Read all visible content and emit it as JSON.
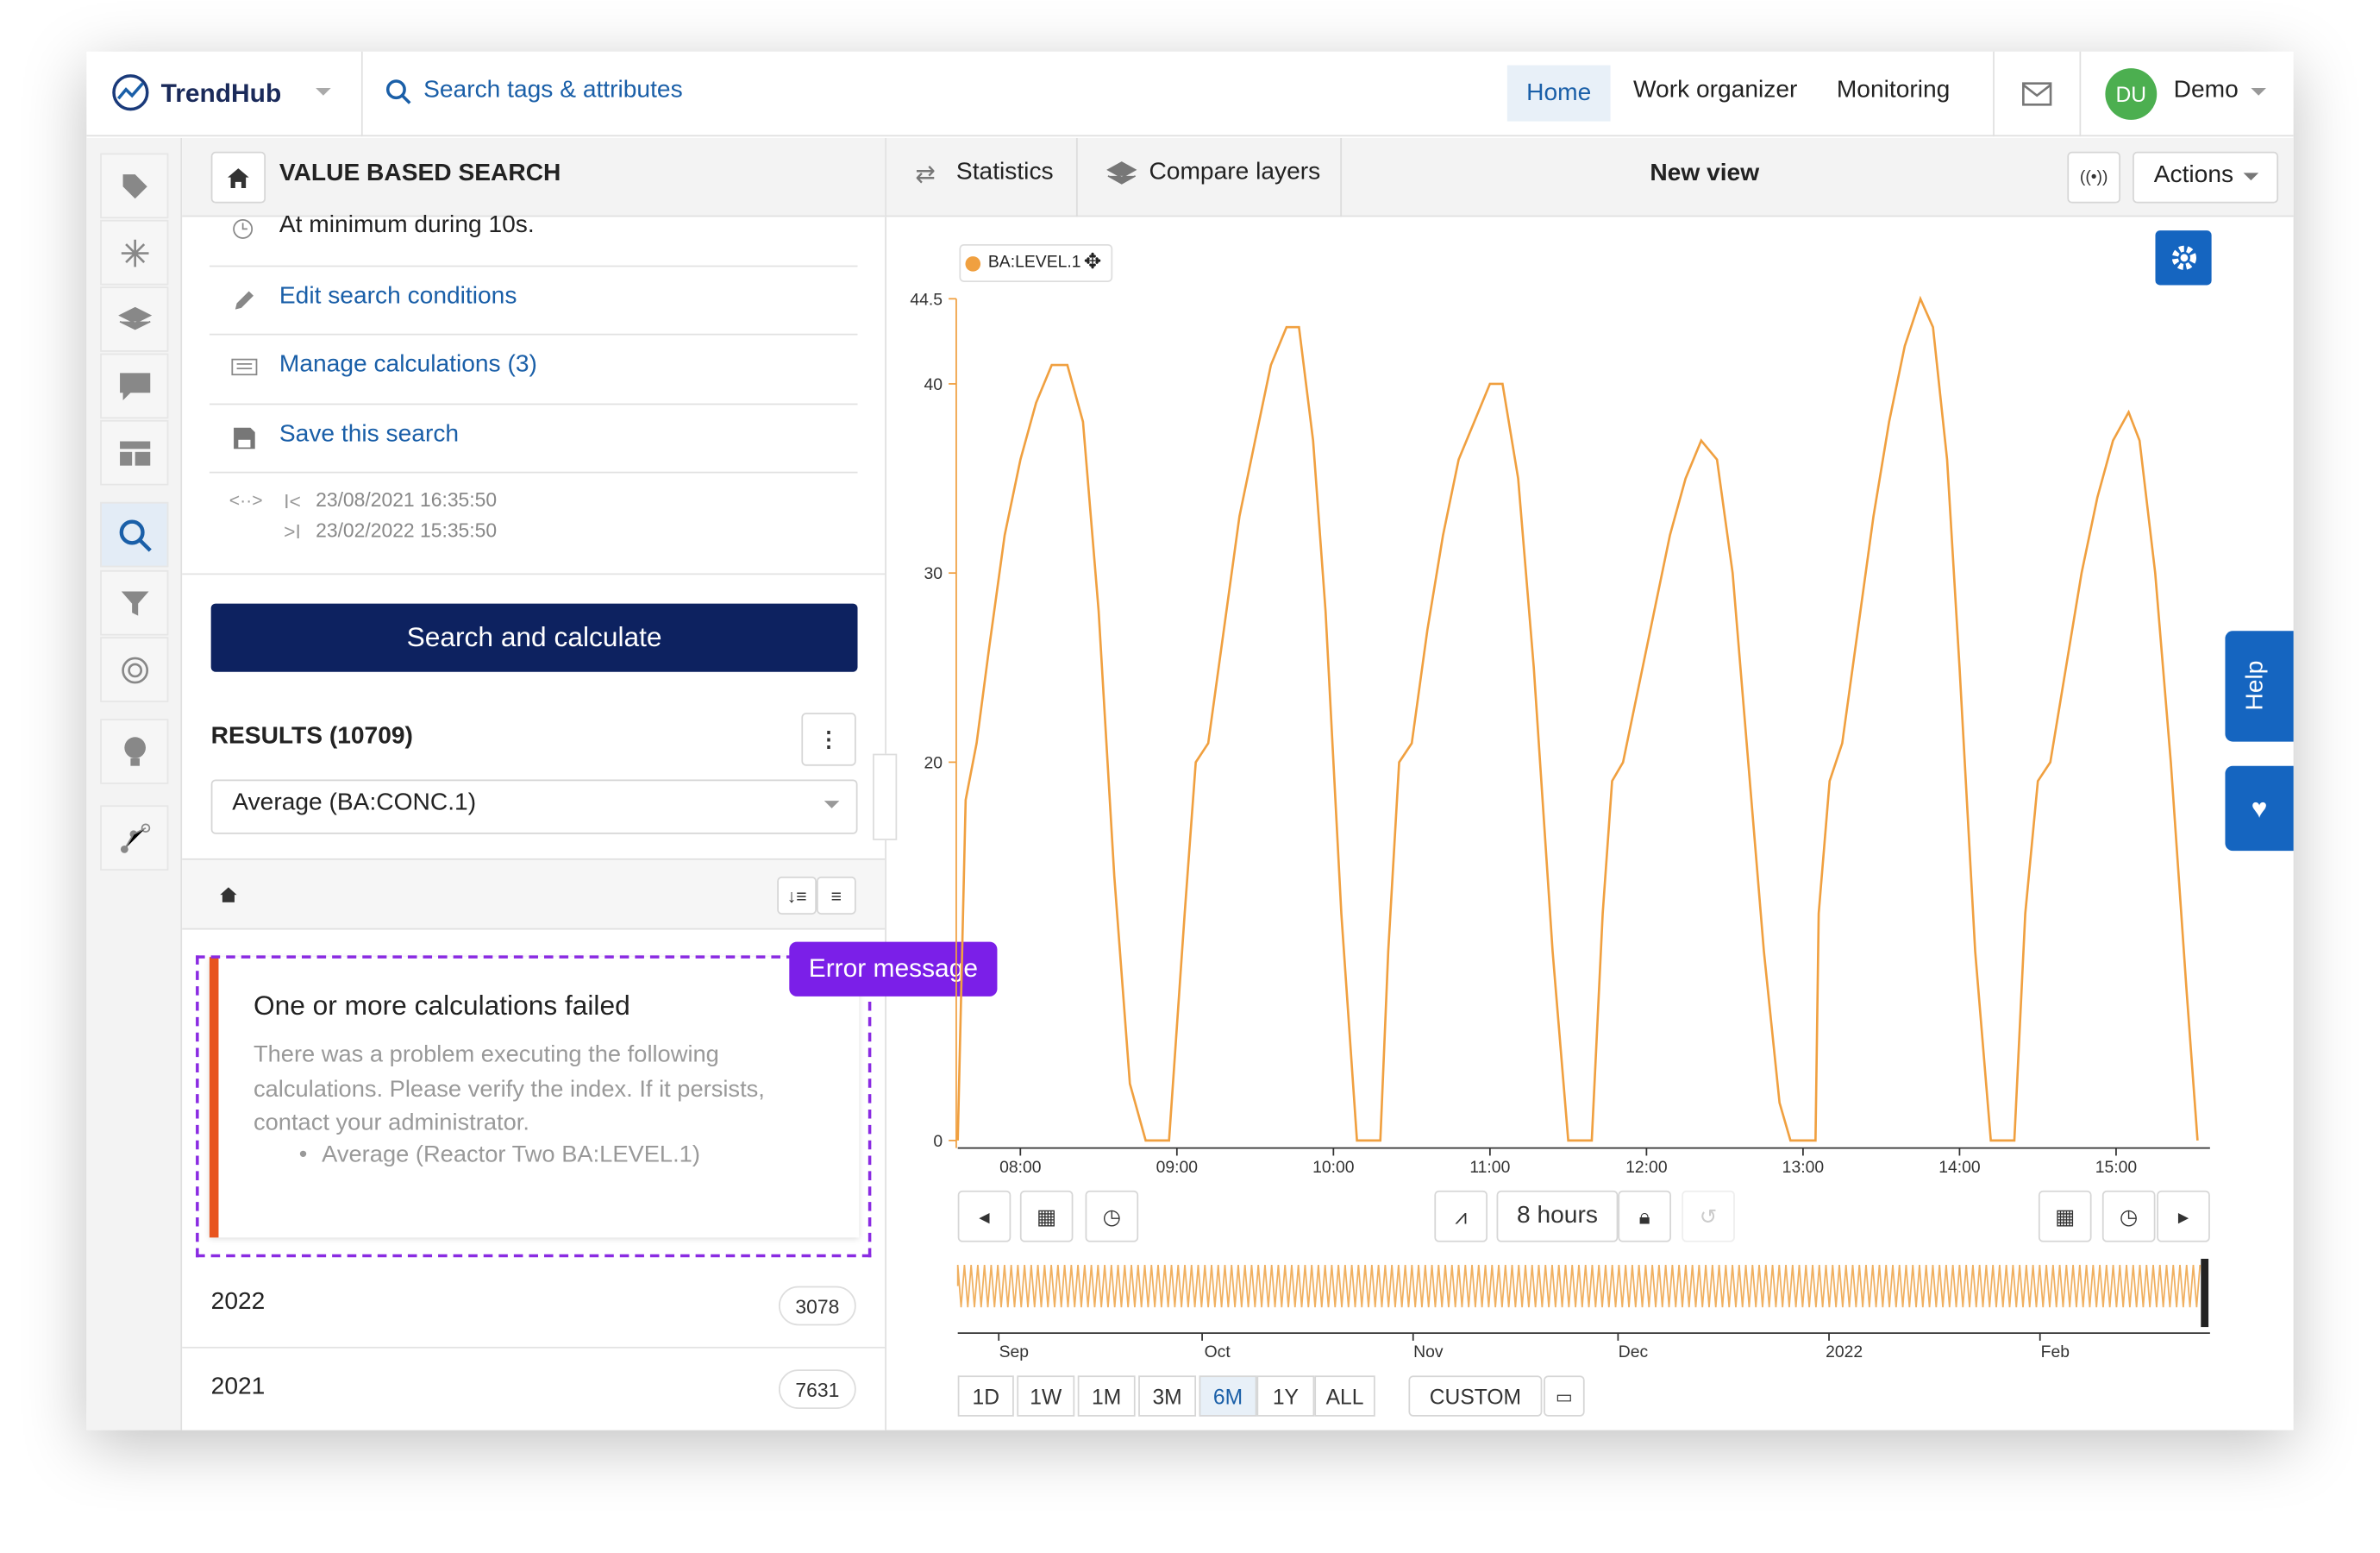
{
  "header": {
    "logo": "TrendHub",
    "search": "Search tags & attributes",
    "nav": [
      "Home",
      "Work organizer",
      "Monitoring"
    ],
    "avatar": "DU",
    "user": "Demo"
  },
  "left_panel": {
    "title": "VALUE BASED SEARCH",
    "condition": "At minimum during 10s.",
    "links": [
      "Edit search conditions",
      "Manage calculations (3)",
      "Save this search"
    ],
    "range_start": "23/08/2021 16:35:50",
    "range_end": "23/02/2022 15:35:50",
    "button": "Search and calculate",
    "results_title": "RESULTS (10709)",
    "select": "Average (BA:CONC.1)",
    "error": {
      "title": "One or more calculations failed",
      "body": "There was a problem executing the following calculations. Please verify the index. If it persists, contact your administrator.",
      "item": "Average (Reactor Two BA:LEVEL.1)"
    },
    "annotation": "Error message",
    "groups": [
      {
        "label": "2022",
        "count": 3078
      },
      {
        "label": "2021",
        "count": 7631
      }
    ]
  },
  "toolbar": {
    "statistics": "Statistics",
    "compare": "Compare layers",
    "view_title": "New view",
    "actions": "Actions"
  },
  "chart_data": {
    "type": "line",
    "x": [
      7.6,
      7.65,
      7.72,
      7.8,
      7.9,
      8.0,
      8.1,
      8.2,
      8.3,
      8.4,
      8.5,
      8.6,
      8.7,
      8.8,
      8.95,
      9.05,
      9.12,
      9.2,
      9.3,
      9.4,
      9.5,
      9.6,
      9.7,
      9.78,
      9.87,
      9.95,
      10.05,
      10.15,
      10.3,
      10.35,
      10.42,
      10.5,
      10.6,
      10.7,
      10.8,
      10.9,
      11.0,
      11.08,
      11.18,
      11.28,
      11.4,
      11.5,
      11.65,
      11.72,
      11.78,
      11.85,
      11.95,
      12.05,
      12.15,
      12.25,
      12.35,
      12.45,
      12.55,
      12.65,
      12.75,
      12.85,
      12.92,
      13.08,
      13.1,
      13.17,
      13.25,
      13.35,
      13.45,
      13.55,
      13.65,
      13.75,
      13.83,
      13.92,
      14.0,
      14.1,
      14.2,
      14.35,
      14.42,
      14.5,
      14.58,
      14.68,
      14.78,
      14.88,
      14.98,
      15.08,
      15.15,
      15.25,
      15.35,
      15.45,
      15.52
    ],
    "series": [
      {
        "name": "BA:LEVEL.1",
        "color": "#f0a040",
        "values": [
          0,
          18,
          21,
          26,
          32,
          36,
          39,
          41,
          41,
          38,
          28,
          14,
          3,
          0,
          0,
          12,
          20,
          21,
          27,
          33,
          37,
          41,
          43,
          43,
          37,
          28,
          12,
          0,
          0,
          10,
          20,
          21,
          27,
          32,
          36,
          38,
          40,
          40,
          35,
          25,
          10,
          0,
          0,
          12,
          19,
          20,
          24,
          28,
          32,
          35,
          37,
          36,
          30,
          20,
          10,
          2,
          0,
          0,
          12,
          19,
          21,
          27,
          33,
          38,
          42,
          44.5,
          43,
          36,
          25,
          10,
          0,
          0,
          12,
          19,
          20,
          25,
          30,
          34,
          37,
          38.5,
          37,
          30,
          20,
          8,
          0
        ]
      }
    ],
    "xlim": [
      7.6,
      15.6
    ],
    "xticks": [
      {
        "value": 8,
        "label": "08:00"
      },
      {
        "value": 9,
        "label": "09:00"
      },
      {
        "value": 10,
        "label": "10:00"
      },
      {
        "value": 11,
        "label": "11:00"
      },
      {
        "value": 12,
        "label": "12:00"
      },
      {
        "value": 13,
        "label": "13:00"
      },
      {
        "value": 14,
        "label": "14:00"
      },
      {
        "value": 15,
        "label": "15:00"
      }
    ],
    "ylim": [
      0,
      44.5
    ],
    "yticks": [
      0,
      20,
      30,
      40,
      44.5
    ]
  },
  "time_controls": {
    "duration": "8 hours",
    "ranges": [
      "1D",
      "1W",
      "1M",
      "3M",
      "6M",
      "1Y",
      "ALL"
    ],
    "custom": "CUSTOM",
    "navigator_labels": [
      "Sep",
      "Oct",
      "Nov",
      "Dec",
      "2022",
      "Feb"
    ]
  },
  "help": "Help"
}
